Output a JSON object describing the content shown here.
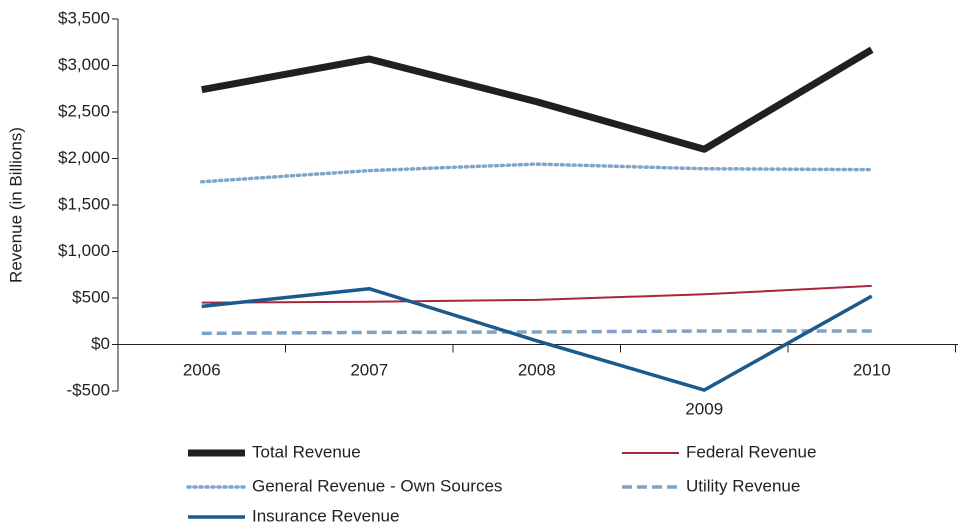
{
  "chart_data": {
    "type": "line",
    "y_label": "Revenue (in Billions)",
    "categories": [
      "2006",
      "2007",
      "2008",
      "2009",
      "2010"
    ],
    "series": [
      {
        "name": "Total Revenue",
        "color": "#231f20",
        "width": 7,
        "dash": "solid",
        "values": [
          2740,
          3070,
          2610,
          2100,
          3170
        ]
      },
      {
        "name": "Federal Revenue",
        "color": "#a6283c",
        "width": 2,
        "dash": "solid",
        "values": [
          450,
          460,
          480,
          540,
          630
        ]
      },
      {
        "name": "General Revenue - Own Sources",
        "color": "#7fa6c9",
        "width": 3.5,
        "dash": "dotted",
        "values": [
          1750,
          1870,
          1940,
          1890,
          1880
        ]
      },
      {
        "name": "Utility Revenue",
        "color": "#7fa3c6",
        "width": 3.5,
        "dash": "dashed",
        "values": [
          120,
          130,
          135,
          145,
          145
        ]
      },
      {
        "name": "Insurance Revenue",
        "color": "#1a5a8c",
        "width": 3.5,
        "dash": "solid",
        "values": [
          410,
          600,
          40,
          -490,
          520
        ]
      }
    ],
    "ylim": [
      -500,
      3500
    ],
    "yticks": [
      {
        "value": -500,
        "label": "-$500"
      },
      {
        "value": 0,
        "label": "$0"
      },
      {
        "value": 500,
        "label": "$500"
      },
      {
        "value": 1000,
        "label": "$1,000"
      },
      {
        "value": 1500,
        "label": "$1,500"
      },
      {
        "value": 2000,
        "label": "$2,000"
      },
      {
        "value": 2500,
        "label": "$2,500"
      },
      {
        "value": 3000,
        "label": "$3,000"
      },
      {
        "value": 3500,
        "label": "$3,500"
      }
    ],
    "grid": false
  }
}
